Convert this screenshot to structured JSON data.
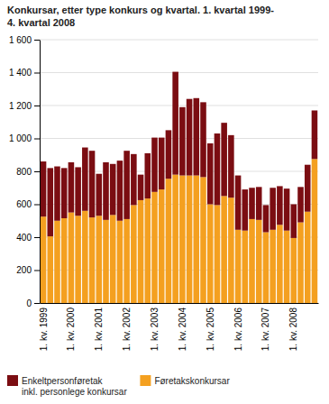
{
  "chart_data": {
    "type": "bar",
    "stacked": true,
    "title": "Konkursar, etter type konkurs og kvartal. 1. kvartal 1999-\n4. kvartal 2008",
    "categories": [
      "1. kv. 1999",
      null,
      null,
      null,
      "1. kv. 2000",
      null,
      null,
      null,
      "1. kv. 2001",
      null,
      null,
      null,
      "1. kv. 2002",
      null,
      null,
      null,
      "1. kv. 2003",
      null,
      null,
      null,
      "1. kv. 2004",
      null,
      null,
      null,
      "1. kv. 2005",
      null,
      null,
      null,
      "1. kv. 2006",
      null,
      null,
      null,
      "1. kv. 2007",
      null,
      null,
      null,
      "1. kv. 2008",
      null,
      null,
      null
    ],
    "series": [
      {
        "name": "Føretakskonkursar",
        "color": "#F4A020",
        "values": [
          525,
          405,
          500,
          515,
          550,
          530,
          560,
          520,
          530,
          505,
          535,
          500,
          510,
          595,
          625,
          635,
          675,
          690,
          755,
          780,
          775,
          775,
          775,
          765,
          600,
          595,
          650,
          640,
          445,
          440,
          510,
          505,
          430,
          445,
          475,
          440,
          395,
          490,
          555,
          875
        ]
      },
      {
        "name": "Enkeltpersonføretak\ninkl. personlege konkursar",
        "color": "#7B0D12",
        "values": [
          335,
          415,
          330,
          305,
          305,
          295,
          385,
          405,
          255,
          350,
          310,
          365,
          415,
          310,
          155,
          275,
          330,
          315,
          295,
          625,
          415,
          465,
          470,
          455,
          370,
          435,
          445,
          380,
          330,
          250,
          190,
          200,
          165,
          255,
          235,
          255,
          205,
          215,
          285,
          295
        ]
      }
    ],
    "ylim": [
      0,
      1600
    ],
    "yticks": [
      0,
      200,
      400,
      600,
      800,
      {
        "value": 1000,
        "label": "1 000"
      },
      {
        "value": 1200,
        "label": "1 200"
      },
      {
        "value": 1400,
        "label": "1 400"
      },
      {
        "value": 1600,
        "label": "1 600"
      }
    ],
    "grid": true,
    "legend": "lower left"
  }
}
